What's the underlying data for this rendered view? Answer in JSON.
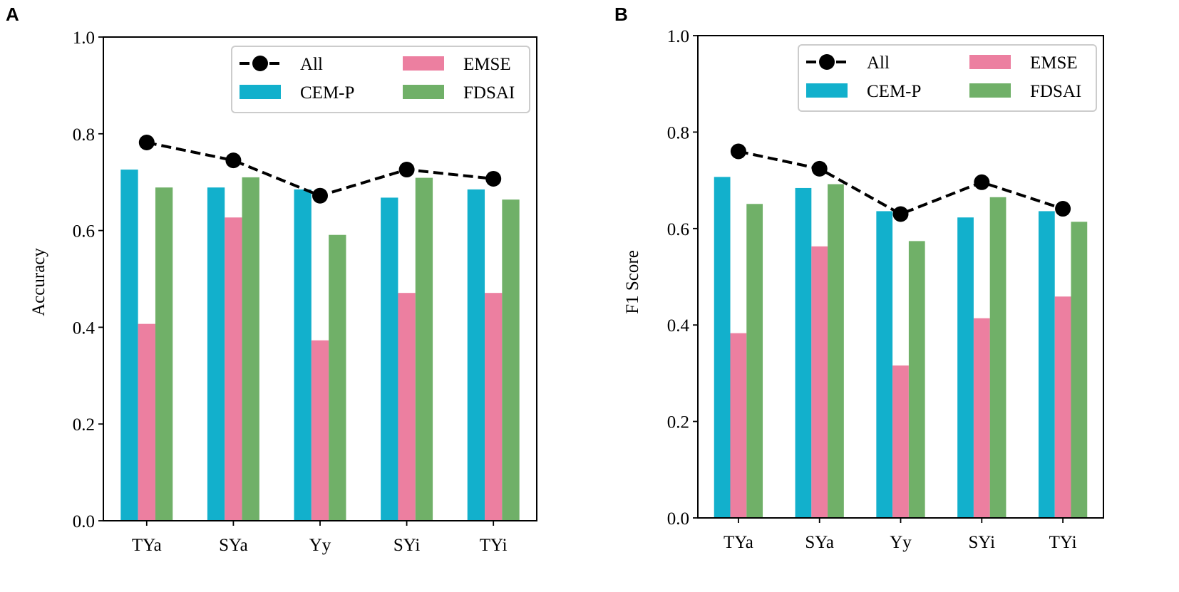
{
  "figure": {
    "colors": {
      "all_line": "#000000",
      "cem_p": "#12B0CC",
      "emse": "#EC7FA0",
      "fdsai": "#70B068"
    }
  },
  "chart_data": [
    {
      "type": "bar",
      "panel_label": "A",
      "title": "",
      "xlabel": "",
      "ylabel": "Accuracy",
      "ylim": [
        0,
        1.0
      ],
      "yticks": [
        0.0,
        0.2,
        0.4,
        0.6,
        0.8,
        1.0
      ],
      "ytick_labels": [
        "0.0",
        "0.2",
        "0.4",
        "0.6",
        "0.8",
        "1.0"
      ],
      "categories": [
        "TYa",
        "SYa",
        "Yy",
        "SYi",
        "TYi"
      ],
      "series": [
        {
          "name": "CEM-P",
          "kind": "bar",
          "color": "#12B0CC",
          "values": [
            0.726,
            0.689,
            0.685,
            0.668,
            0.685
          ]
        },
        {
          "name": "EMSE",
          "kind": "bar",
          "color": "#EC7FA0",
          "values": [
            0.407,
            0.627,
            0.373,
            0.471,
            0.471
          ]
        },
        {
          "name": "FDSAI",
          "kind": "bar",
          "color": "#70B068",
          "values": [
            0.689,
            0.71,
            0.591,
            0.709,
            0.664
          ]
        },
        {
          "name": "All",
          "kind": "line",
          "color": "#000000",
          "values": [
            0.782,
            0.745,
            0.672,
            0.726,
            0.707
          ]
        }
      ],
      "legend": {
        "position": "top-right",
        "entries": [
          "All",
          "EMSE",
          "CEM-P",
          "FDSAI"
        ]
      }
    },
    {
      "type": "bar",
      "panel_label": "B",
      "title": "",
      "xlabel": "",
      "ylabel": "F1 Score",
      "ylim": [
        0,
        1.0
      ],
      "yticks": [
        0.0,
        0.2,
        0.4,
        0.6,
        0.8,
        1.0
      ],
      "ytick_labels": [
        "0.0",
        "0.2",
        "0.4",
        "0.6",
        "0.8",
        "1.0"
      ],
      "categories": [
        "TYa",
        "SYa",
        "Yy",
        "SYi",
        "TYi"
      ],
      "series": [
        {
          "name": "CEM-P",
          "kind": "bar",
          "color": "#12B0CC",
          "values": [
            0.707,
            0.684,
            0.636,
            0.623,
            0.636
          ]
        },
        {
          "name": "EMSE",
          "kind": "bar",
          "color": "#EC7FA0",
          "values": [
            0.383,
            0.563,
            0.316,
            0.414,
            0.459
          ]
        },
        {
          "name": "FDSAI",
          "kind": "bar",
          "color": "#70B068",
          "values": [
            0.651,
            0.692,
            0.574,
            0.665,
            0.614
          ]
        },
        {
          "name": "All",
          "kind": "line",
          "color": "#000000",
          "values": [
            0.76,
            0.724,
            0.63,
            0.696,
            0.641
          ]
        }
      ],
      "legend": {
        "position": "top-right",
        "entries": [
          "All",
          "EMSE",
          "CEM-P",
          "FDSAI"
        ]
      }
    }
  ]
}
